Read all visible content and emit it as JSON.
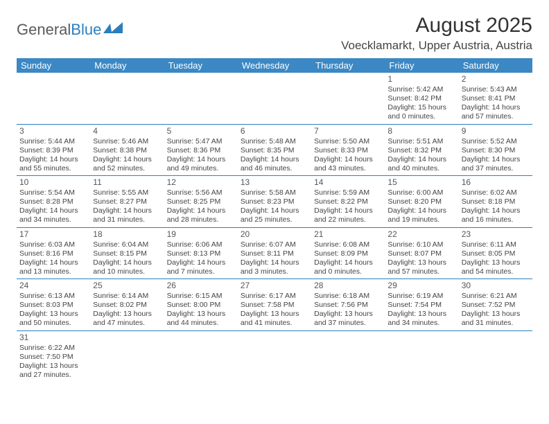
{
  "logo": {
    "text1": "General",
    "text2": "Blue"
  },
  "title": "August 2025",
  "location": "Voecklamarkt, Upper Austria, Austria",
  "colors": {
    "header_bg": "#3b88c4",
    "header_text": "#ffffff",
    "border": "#2a7fbf",
    "text": "#444444"
  },
  "day_headers": [
    "Sunday",
    "Monday",
    "Tuesday",
    "Wednesday",
    "Thursday",
    "Friday",
    "Saturday"
  ],
  "weeks": [
    [
      {
        "empty": true
      },
      {
        "empty": true
      },
      {
        "empty": true
      },
      {
        "empty": true
      },
      {
        "empty": true
      },
      {
        "day": "1",
        "sunrise": "Sunrise: 5:42 AM",
        "sunset": "Sunset: 8:42 PM",
        "daylight": "Daylight: 15 hours and 0 minutes."
      },
      {
        "day": "2",
        "sunrise": "Sunrise: 5:43 AM",
        "sunset": "Sunset: 8:41 PM",
        "daylight": "Daylight: 14 hours and 57 minutes."
      }
    ],
    [
      {
        "day": "3",
        "sunrise": "Sunrise: 5:44 AM",
        "sunset": "Sunset: 8:39 PM",
        "daylight": "Daylight: 14 hours and 55 minutes."
      },
      {
        "day": "4",
        "sunrise": "Sunrise: 5:46 AM",
        "sunset": "Sunset: 8:38 PM",
        "daylight": "Daylight: 14 hours and 52 minutes."
      },
      {
        "day": "5",
        "sunrise": "Sunrise: 5:47 AM",
        "sunset": "Sunset: 8:36 PM",
        "daylight": "Daylight: 14 hours and 49 minutes."
      },
      {
        "day": "6",
        "sunrise": "Sunrise: 5:48 AM",
        "sunset": "Sunset: 8:35 PM",
        "daylight": "Daylight: 14 hours and 46 minutes."
      },
      {
        "day": "7",
        "sunrise": "Sunrise: 5:50 AM",
        "sunset": "Sunset: 8:33 PM",
        "daylight": "Daylight: 14 hours and 43 minutes."
      },
      {
        "day": "8",
        "sunrise": "Sunrise: 5:51 AM",
        "sunset": "Sunset: 8:32 PM",
        "daylight": "Daylight: 14 hours and 40 minutes."
      },
      {
        "day": "9",
        "sunrise": "Sunrise: 5:52 AM",
        "sunset": "Sunset: 8:30 PM",
        "daylight": "Daylight: 14 hours and 37 minutes."
      }
    ],
    [
      {
        "day": "10",
        "sunrise": "Sunrise: 5:54 AM",
        "sunset": "Sunset: 8:28 PM",
        "daylight": "Daylight: 14 hours and 34 minutes."
      },
      {
        "day": "11",
        "sunrise": "Sunrise: 5:55 AM",
        "sunset": "Sunset: 8:27 PM",
        "daylight": "Daylight: 14 hours and 31 minutes."
      },
      {
        "day": "12",
        "sunrise": "Sunrise: 5:56 AM",
        "sunset": "Sunset: 8:25 PM",
        "daylight": "Daylight: 14 hours and 28 minutes."
      },
      {
        "day": "13",
        "sunrise": "Sunrise: 5:58 AM",
        "sunset": "Sunset: 8:23 PM",
        "daylight": "Daylight: 14 hours and 25 minutes."
      },
      {
        "day": "14",
        "sunrise": "Sunrise: 5:59 AM",
        "sunset": "Sunset: 8:22 PM",
        "daylight": "Daylight: 14 hours and 22 minutes."
      },
      {
        "day": "15",
        "sunrise": "Sunrise: 6:00 AM",
        "sunset": "Sunset: 8:20 PM",
        "daylight": "Daylight: 14 hours and 19 minutes."
      },
      {
        "day": "16",
        "sunrise": "Sunrise: 6:02 AM",
        "sunset": "Sunset: 8:18 PM",
        "daylight": "Daylight: 14 hours and 16 minutes."
      }
    ],
    [
      {
        "day": "17",
        "sunrise": "Sunrise: 6:03 AM",
        "sunset": "Sunset: 8:16 PM",
        "daylight": "Daylight: 14 hours and 13 minutes."
      },
      {
        "day": "18",
        "sunrise": "Sunrise: 6:04 AM",
        "sunset": "Sunset: 8:15 PM",
        "daylight": "Daylight: 14 hours and 10 minutes."
      },
      {
        "day": "19",
        "sunrise": "Sunrise: 6:06 AM",
        "sunset": "Sunset: 8:13 PM",
        "daylight": "Daylight: 14 hours and 7 minutes."
      },
      {
        "day": "20",
        "sunrise": "Sunrise: 6:07 AM",
        "sunset": "Sunset: 8:11 PM",
        "daylight": "Daylight: 14 hours and 3 minutes."
      },
      {
        "day": "21",
        "sunrise": "Sunrise: 6:08 AM",
        "sunset": "Sunset: 8:09 PM",
        "daylight": "Daylight: 14 hours and 0 minutes."
      },
      {
        "day": "22",
        "sunrise": "Sunrise: 6:10 AM",
        "sunset": "Sunset: 8:07 PM",
        "daylight": "Daylight: 13 hours and 57 minutes."
      },
      {
        "day": "23",
        "sunrise": "Sunrise: 6:11 AM",
        "sunset": "Sunset: 8:05 PM",
        "daylight": "Daylight: 13 hours and 54 minutes."
      }
    ],
    [
      {
        "day": "24",
        "sunrise": "Sunrise: 6:13 AM",
        "sunset": "Sunset: 8:03 PM",
        "daylight": "Daylight: 13 hours and 50 minutes."
      },
      {
        "day": "25",
        "sunrise": "Sunrise: 6:14 AM",
        "sunset": "Sunset: 8:02 PM",
        "daylight": "Daylight: 13 hours and 47 minutes."
      },
      {
        "day": "26",
        "sunrise": "Sunrise: 6:15 AM",
        "sunset": "Sunset: 8:00 PM",
        "daylight": "Daylight: 13 hours and 44 minutes."
      },
      {
        "day": "27",
        "sunrise": "Sunrise: 6:17 AM",
        "sunset": "Sunset: 7:58 PM",
        "daylight": "Daylight: 13 hours and 41 minutes."
      },
      {
        "day": "28",
        "sunrise": "Sunrise: 6:18 AM",
        "sunset": "Sunset: 7:56 PM",
        "daylight": "Daylight: 13 hours and 37 minutes."
      },
      {
        "day": "29",
        "sunrise": "Sunrise: 6:19 AM",
        "sunset": "Sunset: 7:54 PM",
        "daylight": "Daylight: 13 hours and 34 minutes."
      },
      {
        "day": "30",
        "sunrise": "Sunrise: 6:21 AM",
        "sunset": "Sunset: 7:52 PM",
        "daylight": "Daylight: 13 hours and 31 minutes."
      }
    ],
    [
      {
        "day": "31",
        "sunrise": "Sunrise: 6:22 AM",
        "sunset": "Sunset: 7:50 PM",
        "daylight": "Daylight: 13 hours and 27 minutes."
      },
      {
        "empty": true
      },
      {
        "empty": true
      },
      {
        "empty": true
      },
      {
        "empty": true
      },
      {
        "empty": true
      },
      {
        "empty": true
      }
    ]
  ]
}
